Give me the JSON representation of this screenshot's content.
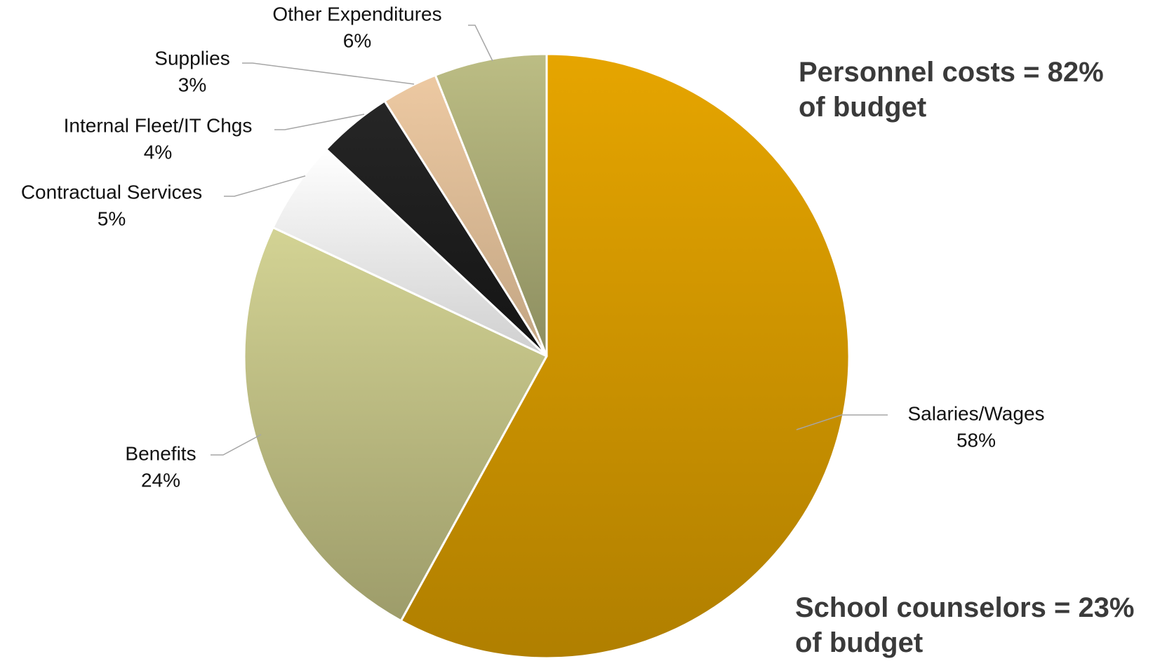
{
  "chart_data": {
    "type": "pie",
    "start": "12 o'clock",
    "direction": "clockwise",
    "slices": [
      {
        "label": "Salaries/Wages",
        "percent_label": "58%",
        "value": 58,
        "color_top": "#e6a500",
        "color_bottom": "#b07f00"
      },
      {
        "label": "Benefits",
        "percent_label": "24%",
        "value": 24,
        "color_top": "#d3d394",
        "color_bottom": "#9d9c6a"
      },
      {
        "label": "Contractual Services",
        "percent_label": "5%",
        "value": 5,
        "color_top": "#ffffff",
        "color_bottom": "#cfcfcf"
      },
      {
        "label": "Internal Fleet/IT Chgs",
        "percent_label": "4%",
        "value": 4,
        "color_top": "#262626",
        "color_bottom": "#141414"
      },
      {
        "label": "Supplies",
        "percent_label": "3%",
        "value": 3,
        "color_top": "#edc9a2",
        "color_bottom": "#c2a583"
      },
      {
        "label": "Other Expenditures",
        "percent_label": "6%",
        "value": 6,
        "color_top": "#bcbd84",
        "color_bottom": "#8d8e60"
      }
    ],
    "annotations": {
      "personnel": {
        "line1": "Personnel costs = 82%",
        "line2": "of budget"
      },
      "counselors": {
        "line1": "School counselors = 23%",
        "line2": "of budget"
      }
    },
    "leader_line_color": "#a6a6a6",
    "slice_border_color": "#ffffff"
  }
}
